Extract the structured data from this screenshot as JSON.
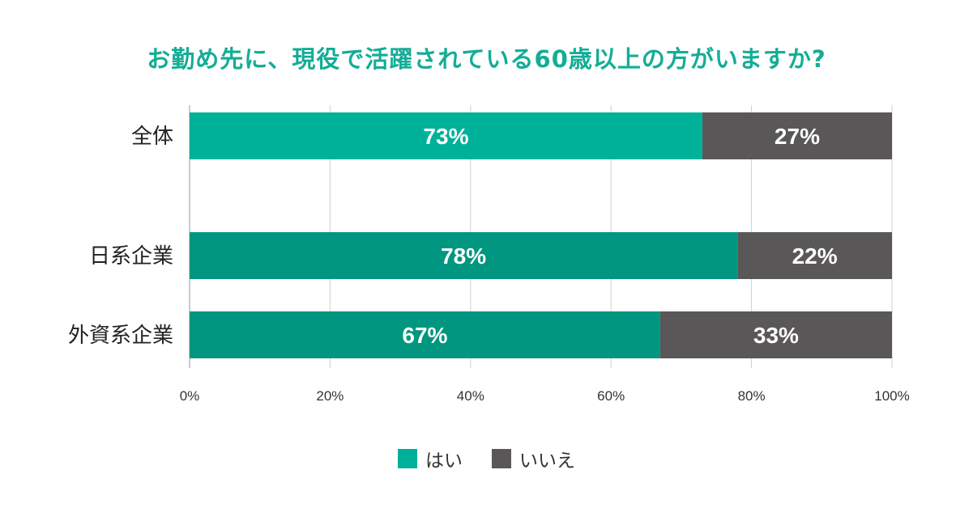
{
  "chart_data": {
    "type": "bar",
    "orientation": "horizontal",
    "stacked": true,
    "title": "お勤め先に、現役で活躍されている60歳以上の方がいますか?",
    "categories": [
      "全体",
      "日系企業",
      "外資系企業"
    ],
    "series": [
      {
        "name": "はい",
        "values": [
          73,
          78,
          67
        ],
        "labels": [
          "73%",
          "78%",
          "67%"
        ]
      },
      {
        "name": "いいえ",
        "values": [
          27,
          22,
          33
        ],
        "labels": [
          "27%",
          "22%",
          "33%"
        ]
      }
    ],
    "xlim": [
      0,
      100
    ],
    "x_ticks": [
      0,
      20,
      40,
      60,
      80,
      100
    ],
    "x_tick_labels": [
      "0%",
      "20%",
      "40%",
      "60%",
      "80%",
      "100%"
    ],
    "grid": true,
    "legend_position": "bottom-center",
    "colors": {
      "title": "#13ad96",
      "yes_overall": "#00b199",
      "yes_segment": "#00967f",
      "no": "#595757",
      "legend_yes": "#00b199",
      "legend_no": "#595757"
    }
  }
}
